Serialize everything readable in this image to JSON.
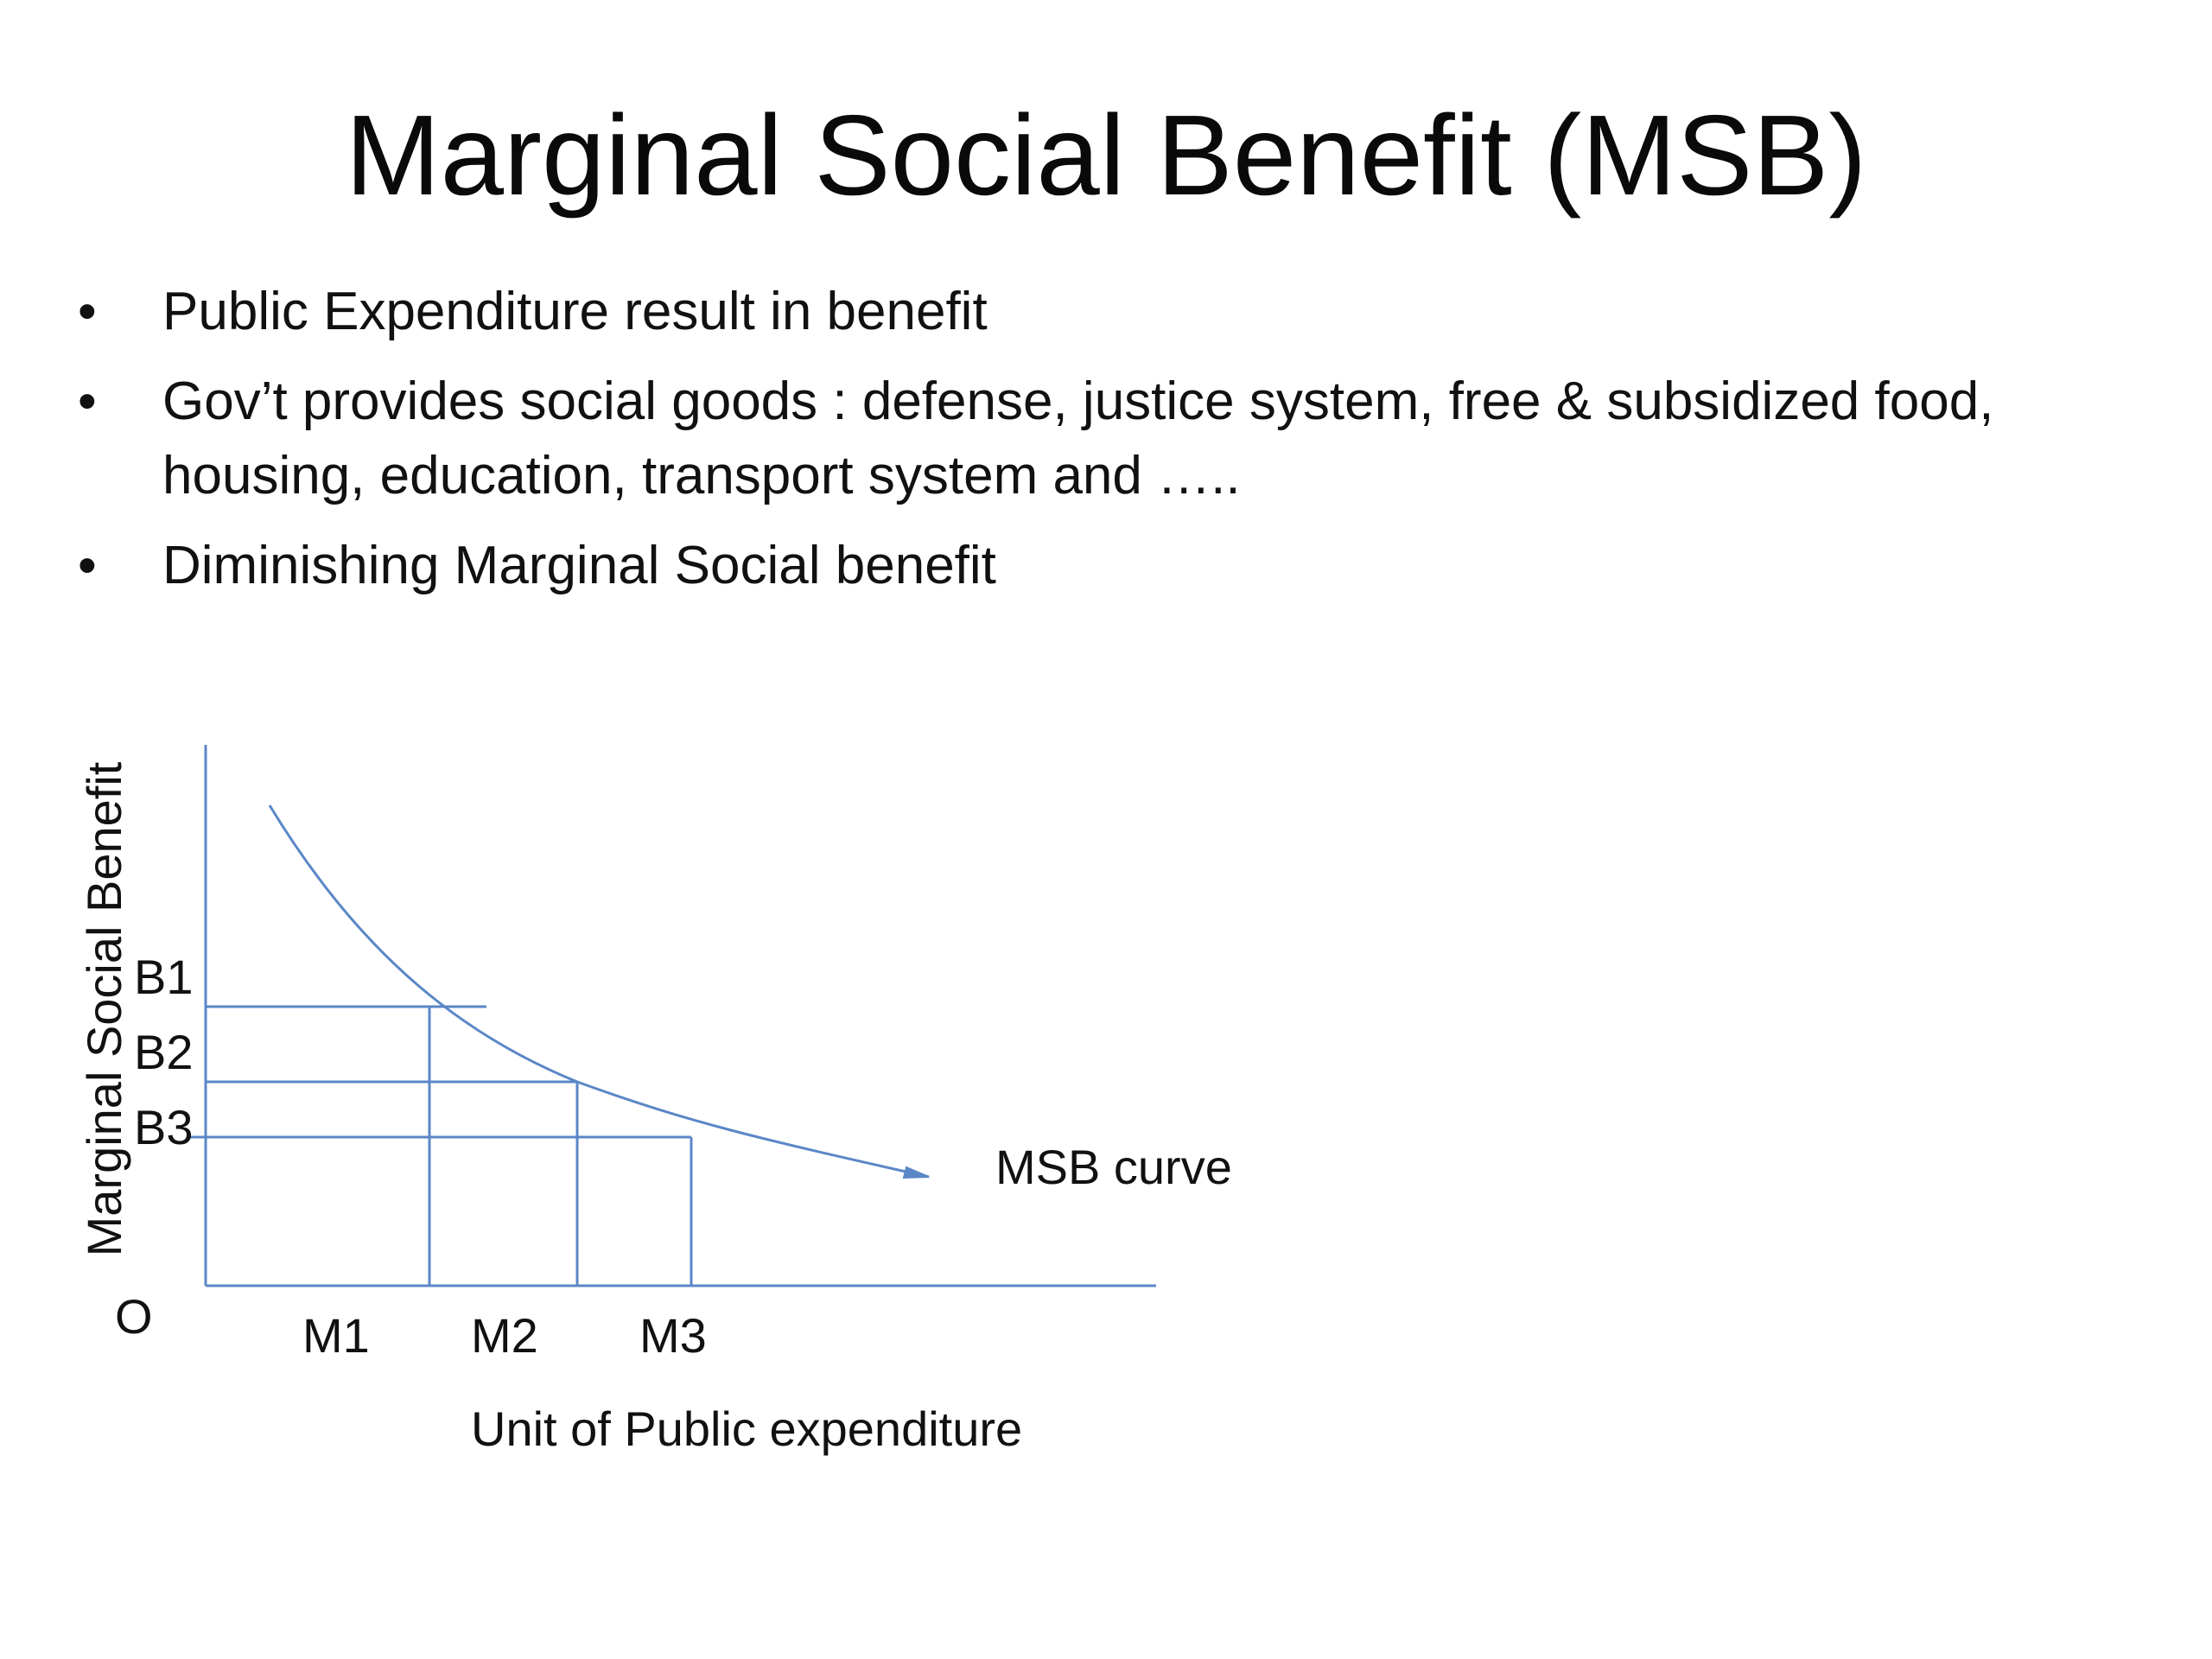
{
  "title": "Marginal Social Benefit (MSB)",
  "bullets": [
    "Public Expenditure result in benefit",
    "Gov’t provides social goods : defense, justice system, free & subsidized food, housing, education, transport system and …..",
    "Diminishing Marginal  Social benefit"
  ],
  "bullet_glyph": "•",
  "diagram": {
    "y_axis_label": "Marginal Social Benefit",
    "x_axis_label": "Unit of Public expenditure",
    "origin_label": "O",
    "curve_label": "MSB curve",
    "y_ticks": [
      "B1",
      "B2",
      "B3"
    ],
    "x_ticks": [
      "M1",
      "M2",
      "M3"
    ],
    "line_color": "#5b87c7"
  }
}
